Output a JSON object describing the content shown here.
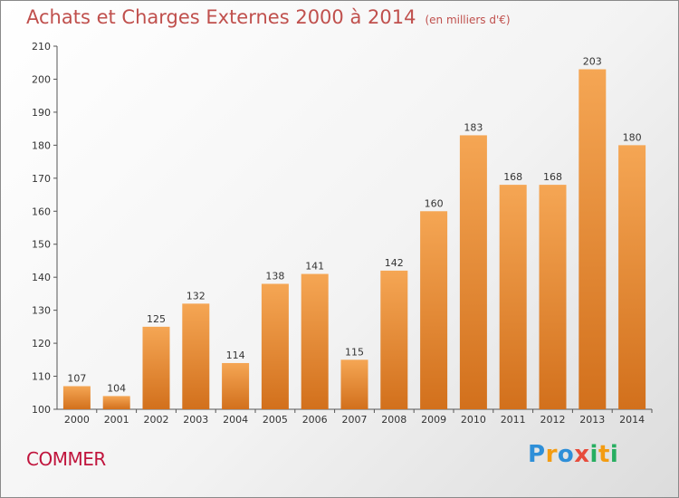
{
  "title": "Achats et Charges Externes 2000 à 2014",
  "unit": "(en milliers d'€)",
  "town": "COMMER",
  "logo": {
    "letters": [
      {
        "ch": "P",
        "color": "#2e8fd8"
      },
      {
        "ch": "r",
        "color": "#f39c12"
      },
      {
        "ch": "o",
        "color": "#2e8fd8"
      },
      {
        "ch": "x",
        "color": "#e74c3c"
      },
      {
        "ch": "i",
        "color": "#27ae60"
      },
      {
        "ch": "t",
        "color": "#f39c12"
      },
      {
        "ch": "i",
        "color": "#27ae60"
      }
    ]
  },
  "chart_data": {
    "type": "bar",
    "categories": [
      "2000",
      "2001",
      "2002",
      "2003",
      "2004",
      "2005",
      "2006",
      "2007",
      "2008",
      "2009",
      "2010",
      "2011",
      "2012",
      "2013",
      "2014"
    ],
    "values": [
      107,
      104,
      125,
      132,
      114,
      138,
      141,
      115,
      142,
      160,
      183,
      168,
      168,
      203,
      180
    ],
    "ylim": [
      100,
      210
    ],
    "yticks": [
      100,
      110,
      120,
      130,
      140,
      150,
      160,
      170,
      180,
      190,
      200,
      210
    ],
    "grid": false,
    "bar_color": "#f0913a"
  }
}
